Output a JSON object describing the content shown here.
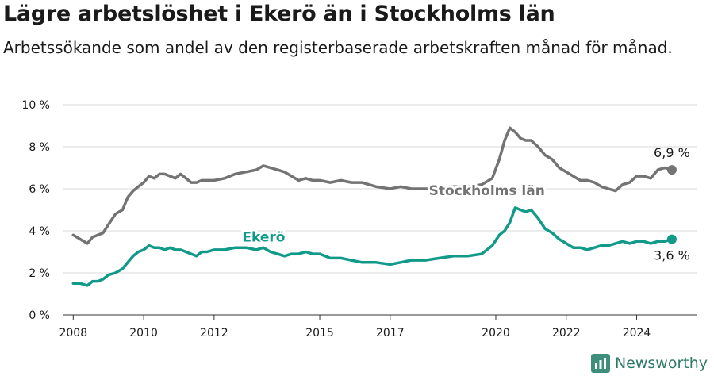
{
  "title": "Lägre arbetslöshet i Ekerö än i Stockholms län",
  "subtitle": "Arbetssökande som andel av den registerbaserade arbetskraften månad för månad.",
  "brand": "Newsworthy",
  "colors": {
    "stockholm": "#737373",
    "ekero": "#119a8a",
    "grid": "#d9d9d9",
    "axis": "#333333"
  },
  "chart_data": {
    "type": "line",
    "title": "Lägre arbetslöshet i Ekerö än i Stockholms län",
    "subtitle": "Arbetssökande som andel av den registerbaserade arbetskraften månad för månad.",
    "xlabel": "",
    "ylabel": "",
    "xlim": [
      2007.7,
      2025.7
    ],
    "ylim": [
      0,
      10
    ],
    "grid": true,
    "y_ticks": [
      0,
      2,
      4,
      6,
      8,
      10
    ],
    "y_tick_labels": [
      "0 %",
      "2 %",
      "4 %",
      "6 %",
      "8 %",
      "10 %"
    ],
    "x_ticks": [
      2008,
      2010,
      2012,
      2015,
      2017,
      2020,
      2022,
      2024
    ],
    "x_tick_labels": [
      "2008",
      "2010",
      "2012",
      "2015",
      "2017",
      "2020",
      "2022",
      "2024"
    ],
    "series": [
      {
        "name": "Stockholms län",
        "color": "#737373",
        "end_label": "6,9 %",
        "x": [
          2008.0,
          2008.2,
          2008.4,
          2008.55,
          2008.7,
          2008.85,
          2009.0,
          2009.2,
          2009.4,
          2009.55,
          2009.7,
          2009.85,
          2010.0,
          2010.15,
          2010.3,
          2010.45,
          2010.6,
          2010.75,
          2010.9,
          2011.05,
          2011.2,
          2011.35,
          2011.5,
          2011.65,
          2011.8,
          2012.0,
          2012.3,
          2012.6,
          2012.9,
          2013.2,
          2013.4,
          2013.6,
          2013.8,
          2014.0,
          2014.2,
          2014.4,
          2014.6,
          2014.8,
          2015.0,
          2015.3,
          2015.6,
          2015.9,
          2016.2,
          2016.6,
          2017.0,
          2017.3,
          2017.6,
          2018.0,
          2018.4,
          2018.8,
          2019.2,
          2019.6,
          2019.9,
          2020.1,
          2020.25,
          2020.4,
          2020.55,
          2020.7,
          2020.85,
          2021.0,
          2021.2,
          2021.4,
          2021.6,
          2021.8,
          2022.0,
          2022.2,
          2022.4,
          2022.6,
          2022.8,
          2023.0,
          2023.2,
          2023.4,
          2023.6,
          2023.8,
          2024.0,
          2024.2,
          2024.4,
          2024.6,
          2024.8,
          2025.0
        ],
        "values": [
          3.8,
          3.6,
          3.4,
          3.7,
          3.8,
          3.9,
          4.3,
          4.8,
          5.0,
          5.6,
          5.9,
          6.1,
          6.3,
          6.6,
          6.5,
          6.7,
          6.7,
          6.6,
          6.5,
          6.7,
          6.5,
          6.3,
          6.3,
          6.4,
          6.4,
          6.4,
          6.5,
          6.7,
          6.8,
          6.9,
          7.1,
          7.0,
          6.9,
          6.8,
          6.6,
          6.4,
          6.5,
          6.4,
          6.4,
          6.3,
          6.4,
          6.3,
          6.3,
          6.1,
          6.0,
          6.1,
          6.0,
          6.0,
          6.0,
          6.1,
          6.1,
          6.2,
          6.5,
          7.4,
          8.3,
          8.9,
          8.7,
          8.4,
          8.3,
          8.3,
          8.0,
          7.6,
          7.4,
          7.0,
          6.8,
          6.6,
          6.4,
          6.4,
          6.3,
          6.1,
          6.0,
          5.9,
          6.2,
          6.3,
          6.6,
          6.6,
          6.5,
          6.9,
          7.0,
          6.9
        ]
      },
      {
        "name": "Ekerö",
        "color": "#119a8a",
        "end_label": "3,6 %",
        "x": [
          2008.0,
          2008.2,
          2008.4,
          2008.55,
          2008.7,
          2008.85,
          2009.0,
          2009.2,
          2009.4,
          2009.55,
          2009.7,
          2009.85,
          2010.0,
          2010.15,
          2010.3,
          2010.45,
          2010.6,
          2010.75,
          2010.9,
          2011.05,
          2011.2,
          2011.35,
          2011.5,
          2011.65,
          2011.8,
          2012.0,
          2012.3,
          2012.6,
          2012.9,
          2013.2,
          2013.4,
          2013.6,
          2013.8,
          2014.0,
          2014.2,
          2014.4,
          2014.6,
          2014.8,
          2015.0,
          2015.3,
          2015.6,
          2015.9,
          2016.2,
          2016.6,
          2017.0,
          2017.3,
          2017.6,
          2018.0,
          2018.4,
          2018.8,
          2019.2,
          2019.6,
          2019.9,
          2020.1,
          2020.25,
          2020.4,
          2020.55,
          2020.7,
          2020.85,
          2021.0,
          2021.2,
          2021.4,
          2021.6,
          2021.8,
          2022.0,
          2022.2,
          2022.4,
          2022.6,
          2022.8,
          2023.0,
          2023.2,
          2023.4,
          2023.6,
          2023.8,
          2024.0,
          2024.2,
          2024.4,
          2024.6,
          2024.8,
          2025.0
        ],
        "values": [
          1.5,
          1.5,
          1.4,
          1.6,
          1.6,
          1.7,
          1.9,
          2.0,
          2.2,
          2.5,
          2.8,
          3.0,
          3.1,
          3.3,
          3.2,
          3.2,
          3.1,
          3.2,
          3.1,
          3.1,
          3.0,
          2.9,
          2.8,
          3.0,
          3.0,
          3.1,
          3.1,
          3.2,
          3.2,
          3.1,
          3.2,
          3.0,
          2.9,
          2.8,
          2.9,
          2.9,
          3.0,
          2.9,
          2.9,
          2.7,
          2.7,
          2.6,
          2.5,
          2.5,
          2.4,
          2.5,
          2.6,
          2.6,
          2.7,
          2.8,
          2.8,
          2.9,
          3.3,
          3.8,
          4.0,
          4.4,
          5.1,
          5.0,
          4.9,
          5.0,
          4.6,
          4.1,
          3.9,
          3.6,
          3.4,
          3.2,
          3.2,
          3.1,
          3.2,
          3.3,
          3.3,
          3.4,
          3.5,
          3.4,
          3.5,
          3.5,
          3.4,
          3.5,
          3.5,
          3.6
        ]
      }
    ]
  }
}
